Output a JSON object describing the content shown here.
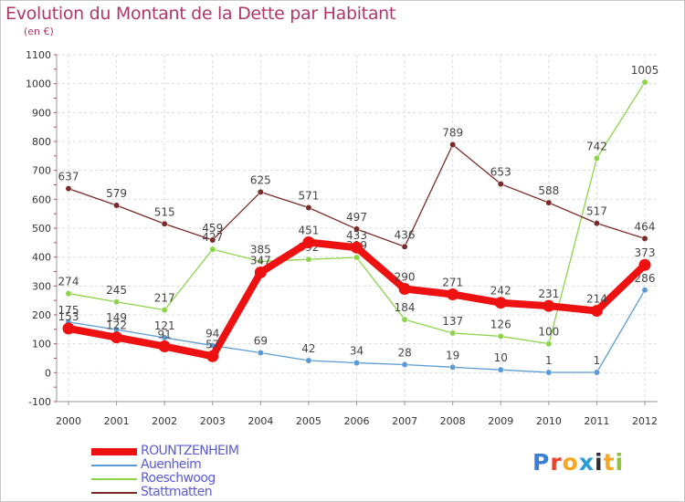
{
  "title": "Evolution du Montant de la Dette par Habitant",
  "subtitle": "(en €)",
  "logo_text": "Proxiti",
  "chart_data": {
    "type": "line",
    "x": [
      "2000",
      "2001",
      "2002",
      "2003",
      "2004",
      "2005",
      "2006",
      "2007",
      "2008",
      "2009",
      "2010",
      "2011",
      "2012"
    ],
    "ylim": [
      -100,
      1100
    ],
    "yticks": [
      -100,
      0,
      100,
      200,
      300,
      400,
      500,
      600,
      700,
      800,
      900,
      1000,
      1100
    ],
    "grid": true,
    "legend_position": "bottom-left",
    "series": [
      {
        "name": "ROUNTZENHEIM",
        "color": "#ee1111",
        "values": [
          153,
          122,
          91,
          57,
          347,
          451,
          433,
          290,
          271,
          242,
          231,
          214,
          373
        ],
        "labels": [
          "153",
          "122",
          "91",
          "57",
          "347",
          "451",
          "433",
          "290",
          "271",
          "242",
          "231",
          "214",
          "373"
        ]
      },
      {
        "name": "Auenheim",
        "color": "#5b9bd5",
        "values": [
          175,
          149,
          121,
          94,
          69,
          42,
          34,
          28,
          19,
          10,
          1,
          1,
          286
        ],
        "labels": [
          "175",
          "149",
          "121",
          "94",
          "69",
          "42",
          "34",
          "28",
          "19",
          "10",
          "1",
          "1",
          "286"
        ]
      },
      {
        "name": "Roeschwoog",
        "color": "#8ed44a",
        "values": [
          274,
          245,
          217,
          427,
          385,
          392,
          399,
          184,
          137,
          126,
          100,
          742,
          1005
        ],
        "labels": [
          "274",
          "245",
          "217",
          "427",
          "385",
          "392",
          "399",
          "184",
          "137",
          "126",
          "100",
          "742",
          "1005"
        ]
      },
      {
        "name": "Stattmatten",
        "color": "#7a2a2a",
        "values": [
          637,
          579,
          515,
          459,
          625,
          571,
          497,
          436,
          789,
          653,
          588,
          517,
          464
        ],
        "labels": [
          "637",
          "579",
          "515",
          "459",
          "625",
          "571",
          "497",
          "436",
          "789",
          "653",
          "588",
          "517",
          "464"
        ]
      }
    ]
  }
}
